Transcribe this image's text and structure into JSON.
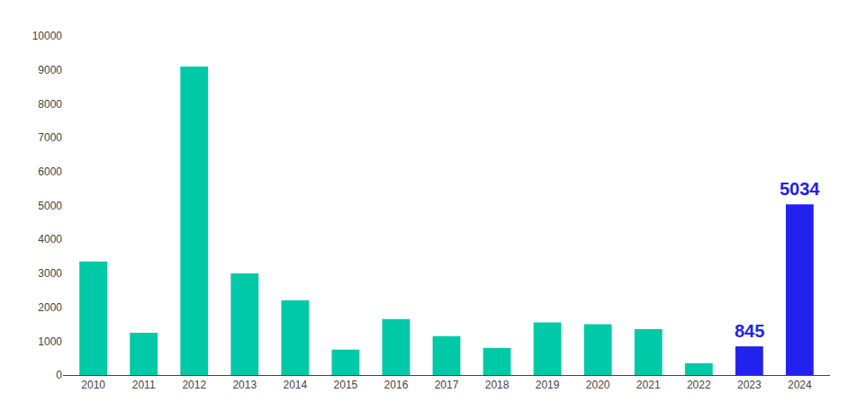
{
  "chart_data": {
    "type": "bar",
    "categories": [
      "2010",
      "2011",
      "2012",
      "2013",
      "2014",
      "2015",
      "2016",
      "2017",
      "2018",
      "2019",
      "2020",
      "2021",
      "2022",
      "2023",
      "2024"
    ],
    "values": [
      3350,
      1250,
      9100,
      3000,
      2200,
      750,
      1650,
      1150,
      800,
      1550,
      1500,
      1350,
      350,
      845,
      5034
    ],
    "colors": [
      "#00C9A7",
      "#00C9A7",
      "#00C9A7",
      "#00C9A7",
      "#00C9A7",
      "#00C9A7",
      "#00C9A7",
      "#00C9A7",
      "#00C9A7",
      "#00C9A7",
      "#00C9A7",
      "#00C9A7",
      "#00C9A7",
      "#2222EE",
      "#2222EE"
    ],
    "annotations": [
      {
        "x": "2023",
        "y": 845,
        "text": "845",
        "color": "#2222EE"
      },
      {
        "x": "2024",
        "y": 5034,
        "text": "5034",
        "color": "#2222EE"
      }
    ],
    "ylim": [
      0,
      10000
    ],
    "yticks": [
      0,
      1000,
      2000,
      3000,
      4000,
      5000,
      6000,
      7000,
      8000,
      9000,
      10000
    ],
    "grid": false
  }
}
